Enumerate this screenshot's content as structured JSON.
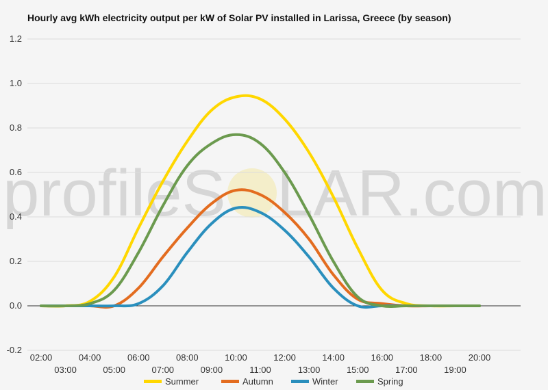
{
  "chart_data": {
    "type": "line",
    "title": "Hourly avg kWh electricity output per kW of Solar PV installed in Larissa, Greece (by season)",
    "watermark": {
      "left": "profileS",
      "right": "LAR.com"
    },
    "categories": [
      "02:00",
      "03:00",
      "04:00",
      "05:00",
      "06:00",
      "07:00",
      "08:00",
      "09:00",
      "10:00",
      "11:00",
      "12:00",
      "13:00",
      "14:00",
      "15:00",
      "16:00",
      "17:00",
      "18:00",
      "19:00",
      "20:00"
    ],
    "ylim": [
      -0.2,
      1.2
    ],
    "yticks": [
      "-0.2",
      "0.0",
      "0.2",
      "0.4",
      "0.6",
      "0.8",
      "1.0",
      "1.2"
    ],
    "grid": true,
    "legend_position": "bottom",
    "series": [
      {
        "name": "Summer",
        "color": "#ffd700",
        "values": [
          0,
          0,
          0.02,
          0.13,
          0.35,
          0.56,
          0.74,
          0.88,
          0.94,
          0.93,
          0.84,
          0.69,
          0.49,
          0.26,
          0.07,
          0.01,
          0,
          0,
          0
        ]
      },
      {
        "name": "Autumn",
        "color": "#e36c1f",
        "values": [
          0,
          0,
          0,
          0,
          0.08,
          0.22,
          0.35,
          0.46,
          0.52,
          0.5,
          0.42,
          0.3,
          0.14,
          0.03,
          0.01,
          0,
          0,
          0,
          0
        ]
      },
      {
        "name": "Winter",
        "color": "#2a8fbd",
        "values": [
          0,
          0,
          0,
          0,
          0.01,
          0.09,
          0.24,
          0.37,
          0.44,
          0.42,
          0.34,
          0.22,
          0.08,
          0,
          0,
          0,
          0,
          0,
          0
        ]
      },
      {
        "name": "Spring",
        "color": "#6b9a4e",
        "values": [
          0,
          0,
          0.01,
          0.07,
          0.24,
          0.45,
          0.63,
          0.73,
          0.77,
          0.73,
          0.6,
          0.41,
          0.2,
          0.04,
          0,
          0,
          0,
          0,
          0
        ]
      }
    ]
  }
}
